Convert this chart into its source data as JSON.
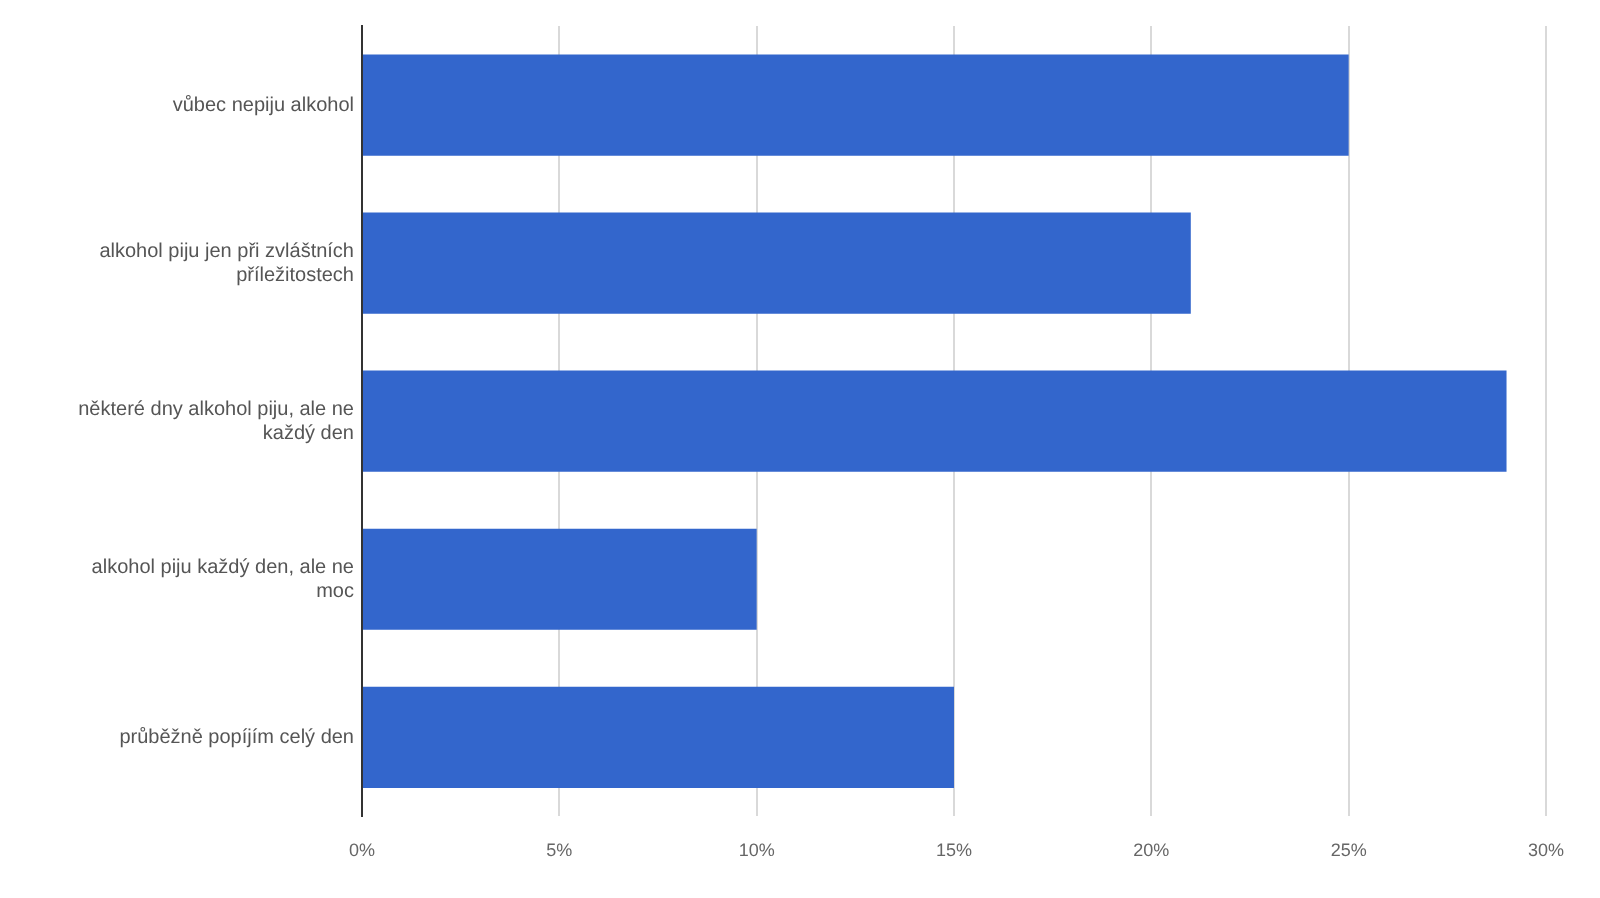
{
  "chart_data": {
    "type": "bar",
    "orientation": "horizontal",
    "categories": [
      "vůbec nepiju alkohol",
      "alkohol piju jen při zvláštních příležitostech",
      "některé dny alkohol piju, ale ne každý den",
      "alkohol piju každý den, ale ne moc",
      "průběžně popíjím celý den"
    ],
    "values": [
      25,
      21,
      29,
      10,
      15
    ],
    "color": "#3366cc",
    "xlim": [
      0,
      30
    ],
    "xticks": [
      {
        "value": 0,
        "label": "0%"
      },
      {
        "value": 5,
        "label": "5%"
      },
      {
        "value": 10,
        "label": "10%"
      },
      {
        "value": 15,
        "label": "15%"
      },
      {
        "value": 20,
        "label": "20%"
      },
      {
        "value": 25,
        "label": "25%"
      },
      {
        "value": 30,
        "label": "30%"
      }
    ],
    "grid": "x"
  }
}
